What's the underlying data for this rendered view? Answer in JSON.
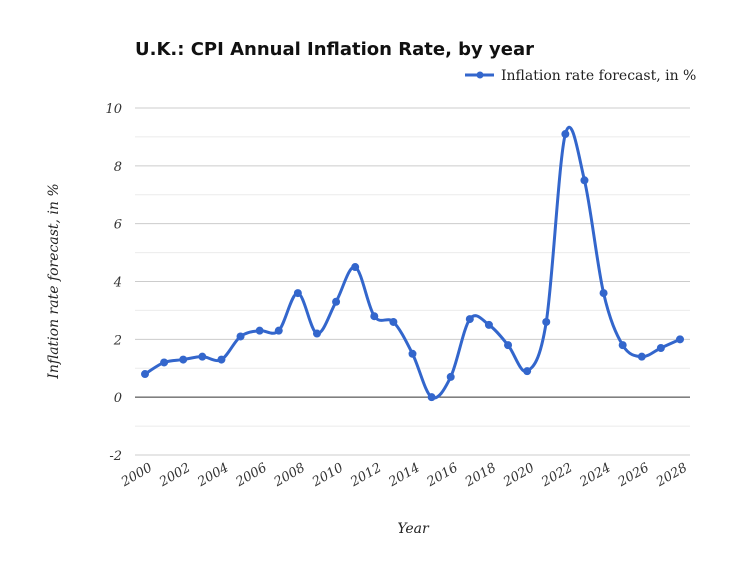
{
  "chart_data": {
    "type": "line",
    "title": "U.K.: CPI Annual Inflation Rate, by year",
    "xlabel": "Year",
    "ylabel": "Inflation rate forecast, in %",
    "ylim": [
      -2,
      10
    ],
    "yticks": [
      -2,
      0,
      2,
      4,
      6,
      8,
      10
    ],
    "xticks": [
      2000,
      2002,
      2004,
      2006,
      2008,
      2010,
      2012,
      2014,
      2016,
      2018,
      2020,
      2022,
      2024,
      2026,
      2028
    ],
    "xlim": [
      2000,
      2028
    ],
    "grid": true,
    "legend_position": "top-right",
    "smooth": true,
    "series": [
      {
        "name": "Inflation rate forecast, in %",
        "color": "#3366cc",
        "x": [
          2000,
          2001,
          2002,
          2003,
          2004,
          2005,
          2006,
          2007,
          2008,
          2009,
          2010,
          2011,
          2012,
          2013,
          2014,
          2015,
          2016,
          2017,
          2018,
          2019,
          2020,
          2021,
          2022,
          2023,
          2024,
          2025,
          2026,
          2027,
          2028
        ],
        "values": [
          0.8,
          1.2,
          1.3,
          1.4,
          1.3,
          2.1,
          2.3,
          2.3,
          3.6,
          2.2,
          3.3,
          4.5,
          2.8,
          2.6,
          1.5,
          0.0,
          0.7,
          2.7,
          2.5,
          1.8,
          0.9,
          2.6,
          9.1,
          7.5,
          3.6,
          1.8,
          1.4,
          1.7,
          2.0
        ]
      }
    ]
  }
}
